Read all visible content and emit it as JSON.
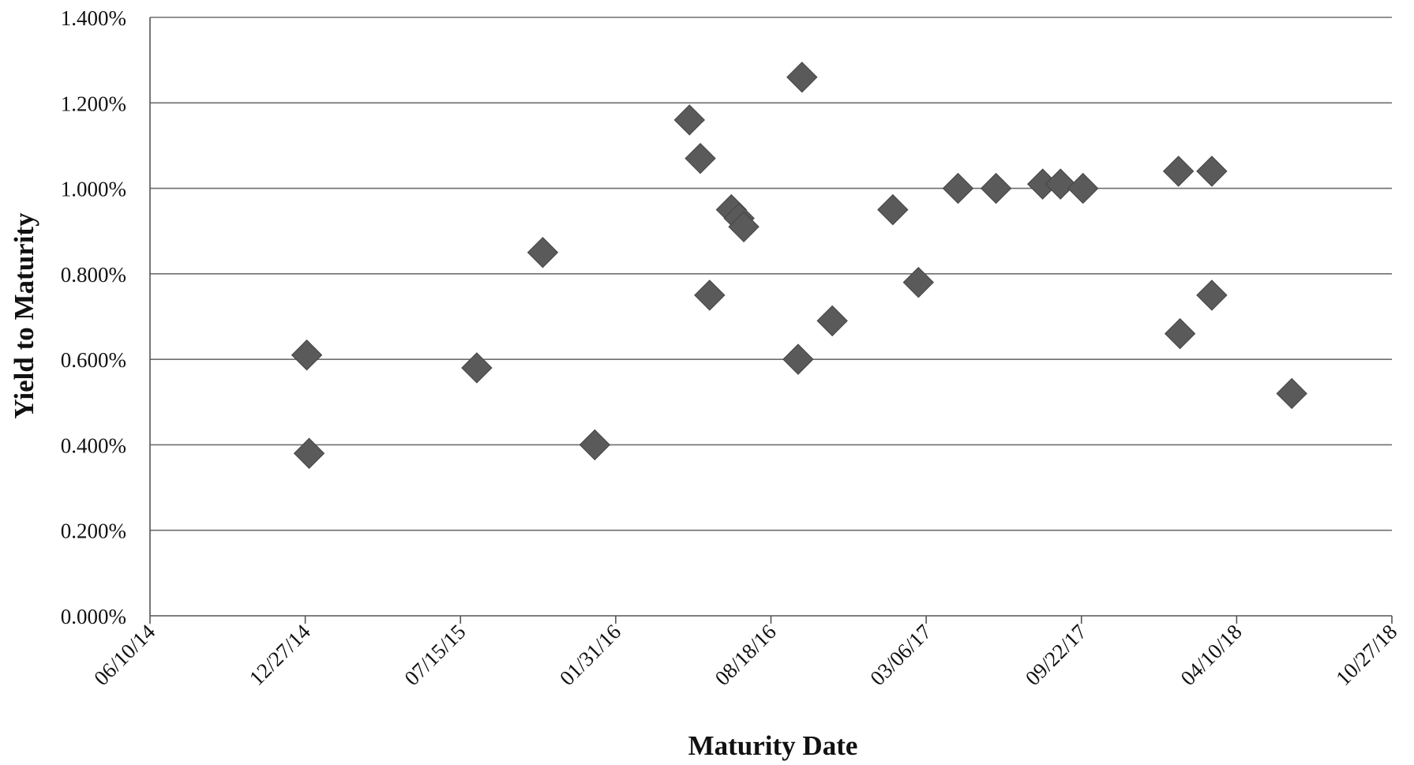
{
  "chart_data": {
    "type": "scatter",
    "title": "",
    "xlabel": "Maturity Date",
    "ylabel": "Yield to Maturity",
    "x_tick_labels": [
      "06/10/14",
      "12/27/14",
      "07/15/15",
      "01/31/16",
      "08/18/16",
      "03/06/17",
      "09/22/17",
      "04/10/18",
      "10/27/18"
    ],
    "y_tick_labels": [
      "0.000%",
      "0.200%",
      "0.400%",
      "0.600%",
      "0.800%",
      "1.000%",
      "1.200%",
      "1.400%"
    ],
    "xlim": [
      "2014-06-10",
      "2018-10-27"
    ],
    "ylim": [
      0,
      1.4
    ],
    "grid": "horizontal",
    "legend": "none",
    "marker": "diamond",
    "colors": {
      "marker": "#5a5a5a",
      "grid": "#6e6e6e",
      "axis": "#555555"
    },
    "points": [
      {
        "x": "2014-12-29",
        "y": 0.61
      },
      {
        "x": "2015-01-01",
        "y": 0.38
      },
      {
        "x": "2015-08-05",
        "y": 0.58
      },
      {
        "x": "2015-10-29",
        "y": 0.85
      },
      {
        "x": "2016-01-04",
        "y": 0.4
      },
      {
        "x": "2016-05-05",
        "y": 1.16
      },
      {
        "x": "2016-05-19",
        "y": 1.07
      },
      {
        "x": "2016-05-31",
        "y": 0.75
      },
      {
        "x": "2016-06-28",
        "y": 0.95
      },
      {
        "x": "2016-07-08",
        "y": 0.93
      },
      {
        "x": "2016-07-14",
        "y": 0.91
      },
      {
        "x": "2016-09-22",
        "y": 0.6
      },
      {
        "x": "2016-09-27",
        "y": 1.26
      },
      {
        "x": "2016-11-05",
        "y": 0.69
      },
      {
        "x": "2017-01-22",
        "y": 0.95
      },
      {
        "x": "2017-02-24",
        "y": 0.78
      },
      {
        "x": "2017-04-16",
        "y": 1.0
      },
      {
        "x": "2017-06-04",
        "y": 1.0
      },
      {
        "x": "2017-08-03",
        "y": 1.01
      },
      {
        "x": "2017-08-26",
        "y": 1.01
      },
      {
        "x": "2017-09-24",
        "y": 1.0
      },
      {
        "x": "2018-01-25",
        "y": 1.04
      },
      {
        "x": "2018-01-27",
        "y": 0.66
      },
      {
        "x": "2018-03-09",
        "y": 1.04
      },
      {
        "x": "2018-03-09",
        "y": 0.75
      },
      {
        "x": "2018-06-20",
        "y": 0.52
      }
    ]
  }
}
